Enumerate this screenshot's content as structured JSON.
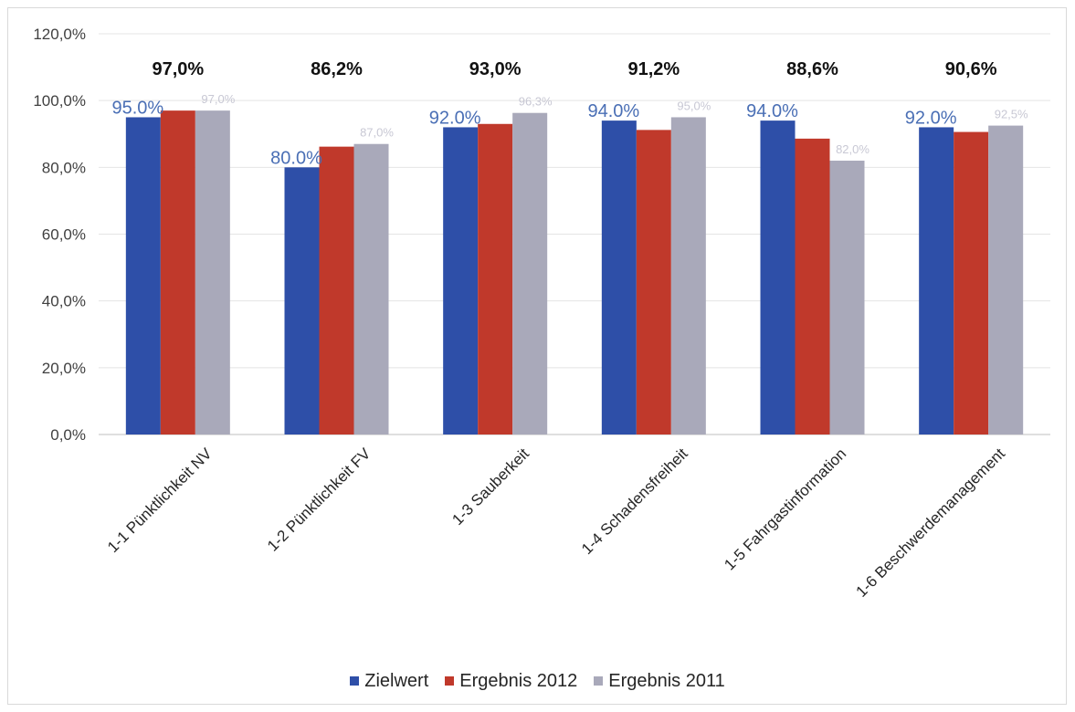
{
  "chart_data": {
    "type": "bar",
    "title": "",
    "xlabel": "",
    "ylabel": "",
    "ylim": [
      0,
      120
    ],
    "yticks": [
      "0,0%",
      "20,0%",
      "40,0%",
      "60,0%",
      "80,0%",
      "100,0%",
      "120,0%"
    ],
    "grid": true,
    "legend_position": "bottom",
    "categories": [
      "1-1 Pünktlichkeit NV",
      "1-2 Pünktlichkeit FV",
      "1-3 Sauberkeit",
      "1-4 Schadensfreiheit",
      "1-5 Fahrgastinformation",
      "1-6 Beschwerdemanagement"
    ],
    "series": [
      {
        "name": "Zielwert",
        "color": "#2e4fa8",
        "values": [
          95.0,
          80.0,
          92.0,
          94.0,
          94.0,
          92.0
        ],
        "labels": [
          "95.0%",
          "80.0%",
          "92.0%",
          "94.0%",
          "94.0%",
          "92.0%"
        ]
      },
      {
        "name": "Ergebnis 2012",
        "color": "#c0392b",
        "values": [
          97.0,
          86.2,
          93.0,
          91.2,
          88.6,
          90.6
        ],
        "labels": [
          "97,0%",
          "86,2%",
          "93,0%",
          "91,2%",
          "88,6%",
          "90,6%"
        ]
      },
      {
        "name": "Ergebnis 2011",
        "color": "#a9a9ba",
        "values": [
          97.0,
          87.0,
          96.3,
          95.0,
          82.0,
          92.5
        ],
        "labels": [
          "97,0%",
          "87,0%",
          "96,3%",
          "95,0%",
          "82,0%",
          "92,5%"
        ]
      }
    ]
  }
}
